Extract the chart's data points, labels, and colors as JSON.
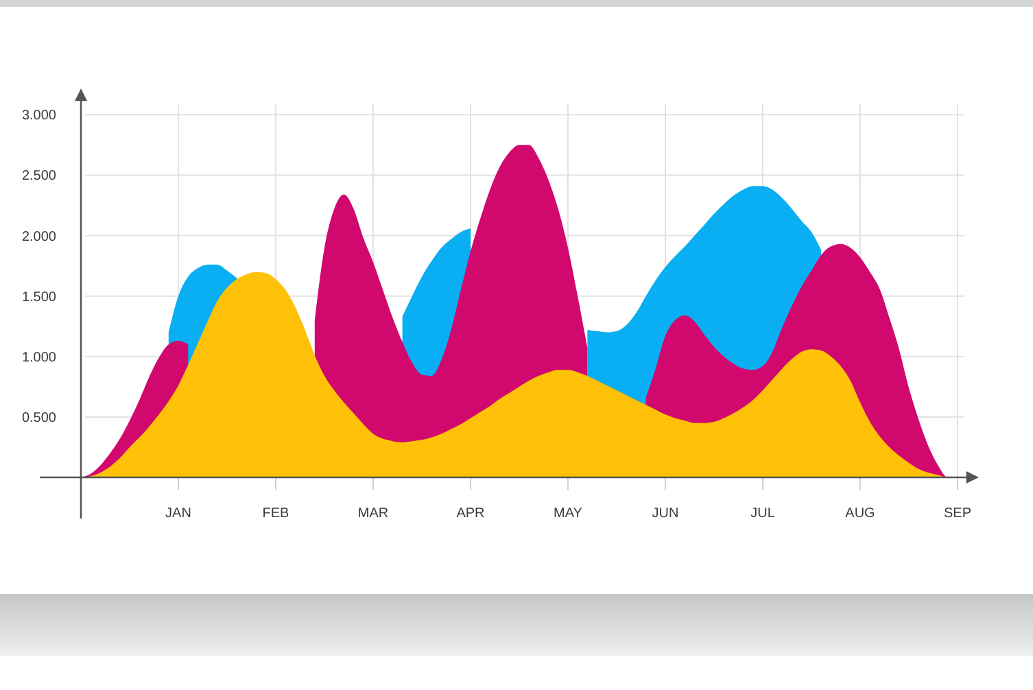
{
  "chart_data": {
    "type": "area",
    "ylim": [
      0,
      3.2
    ],
    "categories": [
      null,
      null,
      null,
      null,
      null,
      null,
      null,
      null,
      null,
      null,
      "JAN",
      null,
      null,
      null,
      null,
      null,
      null,
      null,
      null,
      null,
      "FEB",
      null,
      null,
      null,
      null,
      null,
      null,
      null,
      null,
      null,
      "MAR",
      null,
      null,
      null,
      null,
      null,
      null,
      null,
      null,
      null,
      "APR",
      null,
      null,
      null,
      null,
      null,
      null,
      null,
      null,
      null,
      "MAY",
      null,
      null,
      null,
      null,
      null,
      null,
      null,
      null,
      null,
      "JUN",
      null,
      null,
      null,
      null,
      null,
      null,
      null,
      null,
      null,
      "JUL",
      null,
      null,
      null,
      null,
      null,
      null,
      null,
      null,
      null,
      "AUG",
      null,
      null,
      null,
      null,
      null,
      null,
      null,
      null,
      null,
      "SEP"
    ],
    "yticks": [
      {
        "value": 0.5,
        "label": "0.500"
      },
      {
        "value": 1,
        "label": "1.000"
      },
      {
        "value": 1.5,
        "label": "1.500"
      },
      {
        "value": 2,
        "label": "2.000"
      },
      {
        "value": 2.5,
        "label": "2.500"
      },
      {
        "value": 3,
        "label": "3.000"
      }
    ],
    "grid": true,
    "series": [
      {
        "color": "#0aaef2",
        "values": [
          null,
          null,
          null,
          null,
          null,
          null,
          null,
          null,
          null,
          1.2,
          1.5,
          1.66,
          1.73,
          1.76,
          1.76,
          1.71,
          1.65,
          null,
          null,
          null,
          null,
          null,
          null,
          null,
          null,
          null,
          null,
          null,
          null,
          null,
          null,
          null,
          null,
          1.33,
          1.5,
          1.66,
          1.79,
          1.9,
          1.97,
          2.03,
          2.06,
          null,
          null,
          null,
          null,
          null,
          null,
          null,
          null,
          null,
          null,
          null,
          1.22,
          1.21,
          1.2,
          1.21,
          1.26,
          1.36,
          1.5,
          1.63,
          1.74,
          1.83,
          1.91,
          2.0,
          2.09,
          2.18,
          2.26,
          2.33,
          2.38,
          2.41,
          2.41,
          2.38,
          2.31,
          2.22,
          2.12,
          2.03,
          1.88,
          null,
          null,
          null,
          null,
          null,
          null,
          null,
          null,
          null,
          null,
          null,
          null,
          null,
          null
        ]
      },
      {
        "color": "#d1086e",
        "values": [
          0,
          0.03,
          0.1,
          0.2,
          0.32,
          0.47,
          0.64,
          0.83,
          0.99,
          1.1,
          1.13,
          1.1,
          null,
          null,
          null,
          null,
          null,
          null,
          null,
          null,
          null,
          null,
          null,
          null,
          1.3,
          1.9,
          2.22,
          2.34,
          2.22,
          1.98,
          1.78,
          1.55,
          1.32,
          1.12,
          0.95,
          0.85,
          0.84,
          0.97,
          1.22,
          1.55,
          1.87,
          2.14,
          2.38,
          2.57,
          2.69,
          2.75,
          2.75,
          2.64,
          2.46,
          2.22,
          1.9,
          1.5,
          1.07,
          null,
          null,
          null,
          null,
          null,
          0.66,
          0.9,
          1.17,
          1.3,
          1.34,
          1.29,
          1.18,
          1.08,
          1.0,
          0.94,
          0.9,
          0.89,
          0.92,
          1.04,
          1.24,
          1.42,
          1.58,
          1.71,
          1.84,
          1.91,
          1.93,
          1.9,
          1.82,
          1.7,
          1.56,
          1.32,
          1.06,
          0.74,
          0.48,
          0.26,
          0.1,
          0,
          0
        ]
      },
      {
        "color": "#ffc107",
        "values": [
          0,
          0.01,
          0.04,
          0.09,
          0.16,
          0.25,
          0.33,
          0.42,
          0.52,
          0.63,
          0.76,
          0.93,
          1.11,
          1.29,
          1.46,
          1.57,
          1.64,
          1.68,
          1.7,
          1.69,
          1.64,
          1.55,
          1.41,
          1.22,
          1.01,
          0.84,
          0.72,
          0.62,
          0.53,
          0.44,
          0.36,
          0.32,
          0.3,
          0.29,
          0.3,
          0.31,
          0.33,
          0.36,
          0.4,
          0.44,
          0.49,
          0.54,
          0.59,
          0.65,
          0.7,
          0.75,
          0.8,
          0.84,
          0.87,
          0.89,
          0.89,
          0.87,
          0.84,
          0.8,
          0.76,
          0.72,
          0.68,
          0.64,
          0.6,
          0.56,
          0.52,
          0.49,
          0.47,
          0.45,
          0.45,
          0.46,
          0.49,
          0.53,
          0.58,
          0.64,
          0.72,
          0.81,
          0.9,
          0.98,
          1.04,
          1.06,
          1.05,
          1.0,
          0.92,
          0.8,
          0.62,
          0.46,
          0.34,
          0.25,
          0.18,
          0.12,
          0.07,
          0.04,
          0.02,
          0,
          0
        ]
      }
    ]
  }
}
